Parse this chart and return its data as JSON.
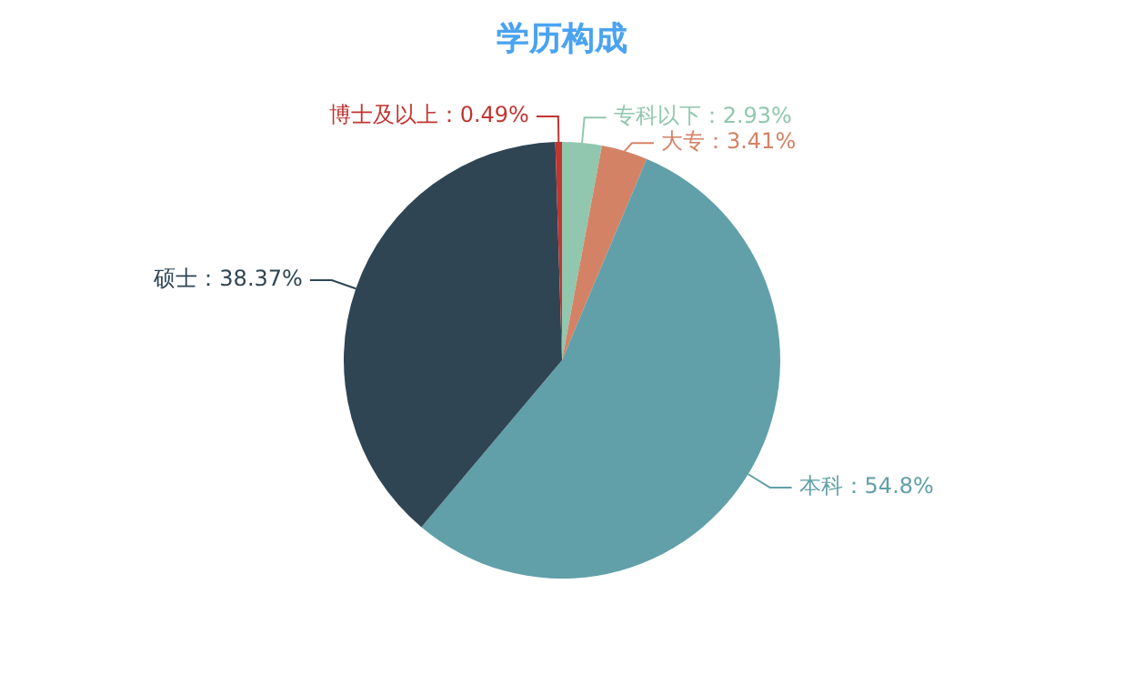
{
  "chart_data": {
    "type": "pie",
    "title": "学历构成",
    "categories": [
      "专科以下",
      "大专",
      "本科",
      "硕士",
      "博士及以上"
    ],
    "values": [
      2.93,
      3.41,
      54.8,
      38.37,
      0.49
    ],
    "colors": [
      "#91c7ae",
      "#d48265",
      "#61a0a8",
      "#2f4554",
      "#c23531"
    ],
    "value_labels": [
      "：2.93%",
      "：3.41%",
      "：54.8%",
      "：38.37%",
      "：0.49%"
    ],
    "legend": false
  }
}
